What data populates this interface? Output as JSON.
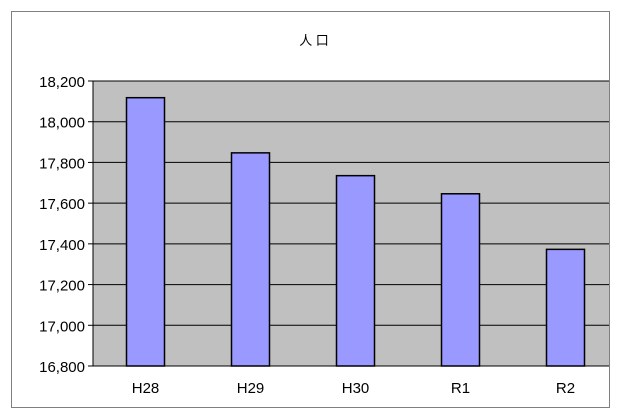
{
  "colors": {
    "plot_background": "#c0c0c0",
    "bar_fill": "#9999ff",
    "bar_stroke": "#000000",
    "gridline": "#000000"
  },
  "chart_data": {
    "type": "bar",
    "title": "人 口",
    "xlabel": "",
    "ylabel": "",
    "categories": [
      "H28",
      "H29",
      "H30",
      "R1",
      "R2"
    ],
    "values": [
      18118,
      17847,
      17735,
      17646,
      17373
    ],
    "ylim": [
      16800,
      18200
    ],
    "yticks": [
      16800,
      17000,
      17200,
      17400,
      17600,
      17800,
      18000,
      18200
    ],
    "ytick_labels": [
      "16,800",
      "17,000",
      "17,200",
      "17,400",
      "17,600",
      "17,800",
      "18,000",
      "18,200"
    ],
    "grid": true,
    "legend": "none"
  }
}
